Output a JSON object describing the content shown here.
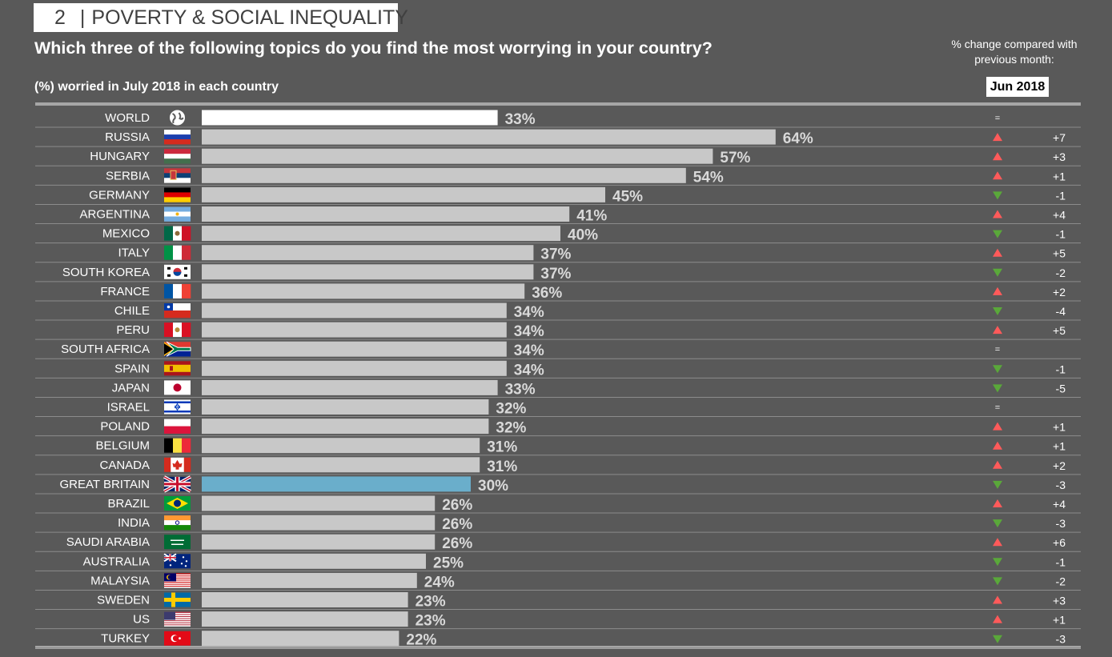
{
  "header": {
    "number": "2",
    "separator": "|",
    "topic": "POVERTY & SOCIAL INEQUALITY",
    "question": "Which three of the following topics do you find the most worrying in your country?",
    "subtitle": "(%) worried in July 2018 in each country",
    "change_note": "% change compared with previous month:",
    "compare_month": "Jun 2018"
  },
  "colors": {
    "background": "#595959",
    "bar_default": "#c8c8c8",
    "bar_world": "#ffffff",
    "bar_highlight": "#6aaecb",
    "up": "#ff5a5a",
    "down": "#5aa83a"
  },
  "chart_data": {
    "type": "bar",
    "orientation": "horizontal",
    "unit": "%",
    "xlim": [
      0,
      100
    ],
    "rows": [
      {
        "country": "WORLD",
        "value": 33,
        "label": "33%",
        "change": "=",
        "dir": "eq",
        "flag": "globe-icon",
        "style": "world"
      },
      {
        "country": "RUSSIA",
        "value": 64,
        "label": "64%",
        "change": "+7",
        "dir": "up",
        "flag": "russia-flag-icon"
      },
      {
        "country": "HUNGARY",
        "value": 57,
        "label": "57%",
        "change": "+3",
        "dir": "up",
        "flag": "hungary-flag-icon"
      },
      {
        "country": "SERBIA",
        "value": 54,
        "label": "54%",
        "change": "+1",
        "dir": "up",
        "flag": "serbia-flag-icon"
      },
      {
        "country": "GERMANY",
        "value": 45,
        "label": "45%",
        "change": "-1",
        "dir": "down",
        "flag": "germany-flag-icon"
      },
      {
        "country": "ARGENTINA",
        "value": 41,
        "label": "41%",
        "change": "+4",
        "dir": "up",
        "flag": "argentina-flag-icon"
      },
      {
        "country": "MEXICO",
        "value": 40,
        "label": "40%",
        "change": "-1",
        "dir": "down",
        "flag": "mexico-flag-icon"
      },
      {
        "country": "ITALY",
        "value": 37,
        "label": "37%",
        "change": "+5",
        "dir": "up",
        "flag": "italy-flag-icon"
      },
      {
        "country": "SOUTH KOREA",
        "value": 37,
        "label": "37%",
        "change": "-2",
        "dir": "down",
        "flag": "south-korea-flag-icon"
      },
      {
        "country": "FRANCE",
        "value": 36,
        "label": "36%",
        "change": "+2",
        "dir": "up",
        "flag": "france-flag-icon"
      },
      {
        "country": "CHILE",
        "value": 34,
        "label": "34%",
        "change": "-4",
        "dir": "down",
        "flag": "chile-flag-icon"
      },
      {
        "country": "PERU",
        "value": 34,
        "label": "34%",
        "change": "+5",
        "dir": "up",
        "flag": "peru-flag-icon"
      },
      {
        "country": "SOUTH AFRICA",
        "value": 34,
        "label": "34%",
        "change": "=",
        "dir": "eq",
        "flag": "south-africa-flag-icon"
      },
      {
        "country": "SPAIN",
        "value": 34,
        "label": "34%",
        "change": "-1",
        "dir": "down",
        "flag": "spain-flag-icon"
      },
      {
        "country": "JAPAN",
        "value": 33,
        "label": "33%",
        "change": "-5",
        "dir": "down",
        "flag": "japan-flag-icon"
      },
      {
        "country": "ISRAEL",
        "value": 32,
        "label": "32%",
        "change": "=",
        "dir": "eq",
        "flag": "israel-flag-icon"
      },
      {
        "country": "POLAND",
        "value": 32,
        "label": "32%",
        "change": "+1",
        "dir": "up",
        "flag": "poland-flag-icon"
      },
      {
        "country": "BELGIUM",
        "value": 31,
        "label": "31%",
        "change": "+1",
        "dir": "up",
        "flag": "belgium-flag-icon"
      },
      {
        "country": "CANADA",
        "value": 31,
        "label": "31%",
        "change": "+2",
        "dir": "up",
        "flag": "canada-flag-icon"
      },
      {
        "country": "GREAT BRITAIN",
        "value": 30,
        "label": "30%",
        "change": "-3",
        "dir": "down",
        "flag": "great-britain-flag-icon",
        "style": "highlight"
      },
      {
        "country": "BRAZIL",
        "value": 26,
        "label": "26%",
        "change": "+4",
        "dir": "up",
        "flag": "brazil-flag-icon"
      },
      {
        "country": "INDIA",
        "value": 26,
        "label": "26%",
        "change": "-3",
        "dir": "down",
        "flag": "india-flag-icon"
      },
      {
        "country": "SAUDI ARABIA",
        "value": 26,
        "label": "26%",
        "change": "+6",
        "dir": "up",
        "flag": "saudi-arabia-flag-icon"
      },
      {
        "country": "AUSTRALIA",
        "value": 25,
        "label": "25%",
        "change": "-1",
        "dir": "down",
        "flag": "australia-flag-icon"
      },
      {
        "country": "MALAYSIA",
        "value": 24,
        "label": "24%",
        "change": "-2",
        "dir": "down",
        "flag": "malaysia-flag-icon"
      },
      {
        "country": "SWEDEN",
        "value": 23,
        "label": "23%",
        "change": "+3",
        "dir": "up",
        "flag": "sweden-flag-icon"
      },
      {
        "country": "US",
        "value": 23,
        "label": "23%",
        "change": "+1",
        "dir": "up",
        "flag": "us-flag-icon"
      },
      {
        "country": "TURKEY",
        "value": 22,
        "label": "22%",
        "change": "-3",
        "dir": "down",
        "flag": "turkey-flag-icon"
      }
    ]
  }
}
